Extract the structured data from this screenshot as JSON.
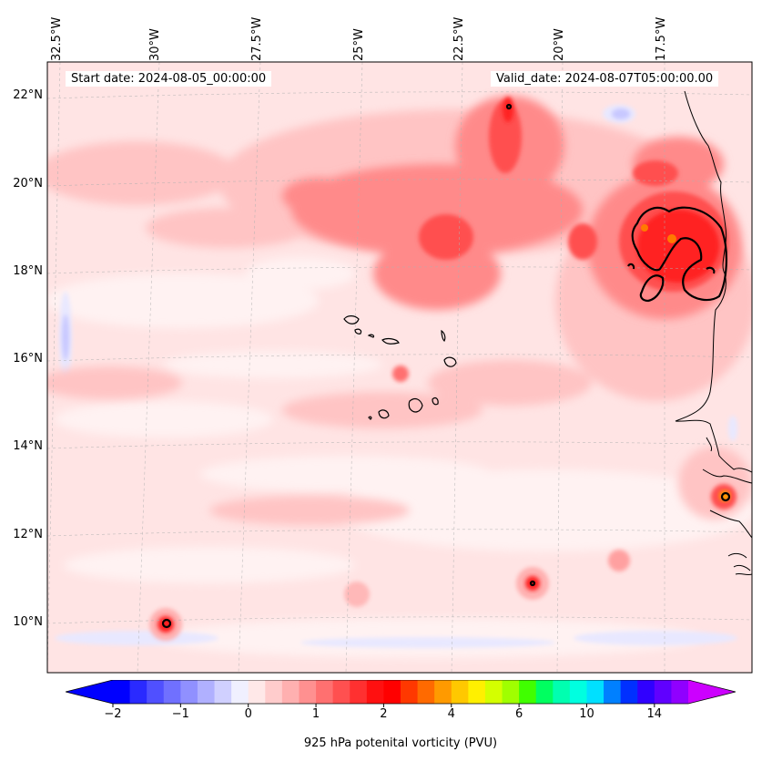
{
  "map": {
    "start_label": "Start date: 2024-08-05_00:00:00",
    "valid_label": "Valid_date: 2024-08-07T05:00:00.00",
    "lon_labels": [
      "32.5°W",
      "30°W",
      "27.5°W",
      "25°W",
      "22.5°W",
      "20°W",
      "17.5°W"
    ],
    "lat_labels": [
      "22°N",
      "20°N",
      "18°N",
      "16°N",
      "14°N",
      "12°N",
      "10°N"
    ]
  },
  "colorbar": {
    "label": "925 hPa potenital vorticity (PVU)",
    "ticks": [
      "−2",
      "−1",
      "0",
      "1",
      "2",
      "4",
      "6",
      "10",
      "14"
    ],
    "colors": [
      "#0000ff",
      "#2a2aff",
      "#5050ff",
      "#7070ff",
      "#9090ff",
      "#b0b0ff",
      "#d0d0ff",
      "#f0f0ff",
      "#ffe8e8",
      "#ffcccc",
      "#ffb0b0",
      "#ff9090",
      "#ff7070",
      "#ff5050",
      "#ff3030",
      "#ff1010",
      "#ff0000",
      "#ff3800",
      "#ff6a00",
      "#ff9a00",
      "#ffc800",
      "#fff000",
      "#d4ff00",
      "#a0ff00",
      "#40ff00",
      "#00ff60",
      "#00ffb0",
      "#00ffe0",
      "#00e0ff",
      "#0080ff",
      "#0030ff",
      "#3000ff",
      "#6000ff",
      "#9000ff"
    ],
    "under_color": "#0000ff",
    "over_color": "#cc00ff"
  },
  "features": {
    "pv_maxima": [
      {
        "lon": -16.5,
        "lat": 18.4,
        "pvu": 3.0
      },
      {
        "lon": -20.8,
        "lat": 21.8,
        "pvu": 2.5
      },
      {
        "lon": -20.3,
        "lat": 10.9,
        "pvu": 3.0
      },
      {
        "lon": -29.6,
        "lat": 10.0,
        "pvu": 3.0
      },
      {
        "lon": -16.3,
        "lat": 12.9,
        "pvu": 3.5
      }
    ]
  }
}
